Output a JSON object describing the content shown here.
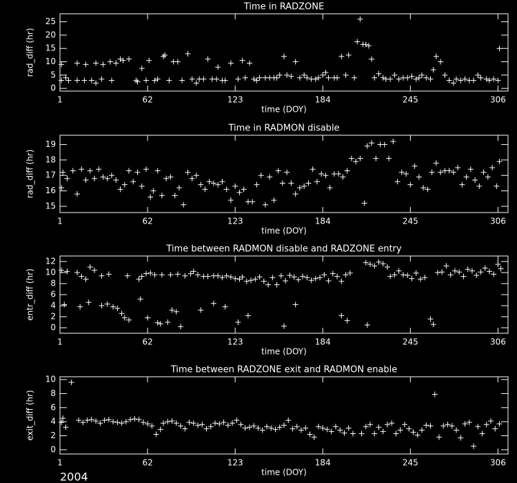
{
  "chart_data": [
    {
      "type": "scatter",
      "title": "Time in RADZONE",
      "x_label": "time (DOY)",
      "y_label": "rad_diff (hr)",
      "color": "#ffffff",
      "marker": "+",
      "xlim": [
        1,
        313
      ],
      "ylim": [
        -1,
        28
      ],
      "xticks": [
        1,
        62,
        123,
        184,
        245,
        306
      ],
      "yticks": [
        0,
        5,
        10,
        15,
        20,
        25
      ],
      "x": [
        2,
        2,
        5,
        7,
        13,
        13,
        18,
        19,
        23,
        26,
        26,
        30,
        31,
        36,
        37,
        40,
        43,
        45,
        49,
        54,
        55,
        58,
        61,
        63,
        67,
        69,
        73,
        74,
        77,
        80,
        83,
        86,
        90,
        93,
        96,
        98,
        101,
        104,
        107,
        110,
        111,
        114,
        116,
        120,
        125,
        128,
        130,
        133,
        136,
        138,
        140,
        144,
        147,
        150,
        152,
        154,
        157,
        159,
        162,
        165,
        168,
        171,
        173,
        176,
        179,
        181,
        184,
        186,
        188,
        192,
        194,
        197,
        200,
        202,
        206,
        208,
        210,
        212,
        214,
        216,
        218,
        220,
        223,
        226,
        228,
        231,
        234,
        237,
        240,
        243,
        246,
        249,
        251,
        253,
        256,
        259,
        261,
        263,
        266,
        269,
        272,
        275,
        277,
        280,
        283,
        286,
        289,
        292,
        294,
        298,
        300,
        303,
        306,
        307
      ],
      "values": [
        3,
        9,
        4,
        3,
        9.5,
        3,
        3,
        9,
        3,
        2,
        9.5,
        3.5,
        9,
        10,
        3,
        9.5,
        11,
        10.5,
        11,
        3,
        2.5,
        7.5,
        3,
        10.5,
        3,
        3.5,
        12,
        12.5,
        3,
        10,
        10,
        3,
        13,
        3.5,
        2,
        3.5,
        3.5,
        11,
        3.5,
        3.5,
        8,
        3,
        3,
        9.5,
        3.5,
        10.5,
        4,
        9.5,
        3.5,
        3,
        4,
        4,
        4,
        4,
        4,
        5,
        12,
        5,
        4.5,
        10,
        4,
        5,
        4,
        3.5,
        3.5,
        4,
        5,
        6,
        4,
        4,
        4,
        12,
        5,
        12.5,
        4,
        17.5,
        26,
        16.5,
        16.5,
        16,
        11,
        4,
        5.5,
        4,
        3.5,
        3.5,
        5,
        3.5,
        4,
        4,
        4.5,
        3.5,
        4,
        5,
        4,
        3.5,
        7,
        12,
        10,
        5,
        3,
        2,
        3.5,
        3,
        3.5,
        3,
        3,
        5,
        4,
        3.5,
        3,
        3.5,
        3,
        15
      ]
    },
    {
      "type": "scatter",
      "title": "Time in RADMON disable",
      "x_label": "time (DOY)",
      "y_label": "rad_diff (hr)",
      "color": "#ffffff",
      "marker": "+",
      "xlim": [
        1,
        313
      ],
      "ylim": [
        14.6,
        19.6
      ],
      "xticks": [
        1,
        62,
        123,
        184,
        245,
        306
      ],
      "yticks": [
        15,
        16,
        17,
        18,
        19
      ],
      "x": [
        2,
        3,
        6,
        10,
        13,
        16,
        19,
        22,
        25,
        28,
        31,
        34,
        37,
        40,
        43,
        46,
        49,
        52,
        55,
        58,
        61,
        64,
        66,
        69,
        72,
        75,
        78,
        81,
        84,
        87,
        90,
        93,
        96,
        99,
        102,
        105,
        108,
        111,
        114,
        117,
        120,
        123,
        126,
        129,
        132,
        135,
        138,
        141,
        144,
        147,
        150,
        153,
        156,
        159,
        162,
        165,
        168,
        171,
        174,
        177,
        180,
        183,
        186,
        189,
        192,
        195,
        198,
        201,
        204,
        207,
        210,
        213,
        215,
        218,
        221,
        224,
        227,
        230,
        233,
        236,
        239,
        242,
        245,
        248,
        251,
        254,
        257,
        260,
        263,
        266,
        269,
        272,
        275,
        278,
        281,
        284,
        287,
        290,
        293,
        296,
        299,
        302,
        305,
        307
      ],
      "values": [
        16.2,
        17.2,
        16.8,
        17.3,
        15.8,
        17.4,
        16.7,
        17.3,
        16.8,
        17.4,
        16.9,
        16.8,
        17,
        16.7,
        16.1,
        16.4,
        17.3,
        16.6,
        17.2,
        16.3,
        17.4,
        15.6,
        16,
        17.3,
        15.7,
        16.8,
        16.9,
        15.7,
        16.2,
        15.1,
        17.2,
        16.8,
        17,
        16.4,
        16.1,
        16.6,
        16.5,
        16.4,
        16.6,
        16.1,
        15.4,
        16.3,
        15.9,
        16.1,
        15.3,
        15.3,
        16.4,
        17,
        15.1,
        16.9,
        15.4,
        17.3,
        16.5,
        17.2,
        16.5,
        15.8,
        16.2,
        16.3,
        16.5,
        17.4,
        16.6,
        17.1,
        17,
        16.2,
        17.1,
        17.1,
        16.9,
        17.3,
        18.1,
        17.9,
        18.1,
        15.2,
        18.9,
        19.1,
        18.1,
        19,
        19,
        18.1,
        19.2,
        16.6,
        17.2,
        17.1,
        16.4,
        17.6,
        16.9,
        16.2,
        16.1,
        17.2,
        17.8,
        17.2,
        17.3,
        17.3,
        17.2,
        17.5,
        16.4,
        16.9,
        17.4,
        16.7,
        16.3,
        17.2,
        16.9,
        17.5,
        16.3,
        17.9
      ]
    },
    {
      "type": "scatter",
      "title": "Time between RADMON disable and RADZONE entry",
      "x_label": "time (DOY)",
      "y_label": "entr_diff (hr)",
      "color": "#ffffff",
      "marker": "+",
      "xlim": [
        1,
        313
      ],
      "ylim": [
        -1,
        13
      ],
      "xticks": [
        1,
        62,
        123,
        184,
        245,
        306
      ],
      "yticks": [
        0,
        2,
        4,
        6,
        8,
        10,
        12
      ],
      "x": [
        2,
        6,
        13,
        16,
        19,
        22,
        25,
        30,
        35,
        48,
        56,
        58,
        61,
        64,
        67,
        72,
        78,
        83,
        88,
        92,
        94,
        97,
        101,
        104,
        108,
        111,
        114,
        117,
        120,
        123,
        126,
        128,
        131,
        134,
        137,
        140,
        143,
        146,
        149,
        152,
        155,
        158,
        161,
        164,
        167,
        170,
        173,
        176,
        179,
        182,
        185,
        188,
        191,
        194,
        197,
        200,
        203,
        214,
        217,
        220,
        223,
        226,
        229,
        231,
        234,
        237,
        240,
        243,
        246,
        249,
        252,
        255,
        264,
        267,
        270,
        273,
        276,
        279,
        282,
        285,
        288,
        291,
        294,
        297,
        300,
        303,
        306,
        308,
        4,
        15,
        21,
        30,
        34,
        38,
        41,
        44,
        46,
        49,
        57,
        62,
        69,
        71,
        76,
        79,
        82,
        85,
        99,
        108,
        116,
        125,
        132,
        157,
        165,
        197,
        201,
        215,
        259,
        261
      ],
      "values": [
        10.4,
        10.2,
        10,
        9.3,
        8.8,
        11,
        10.4,
        9.4,
        9.7,
        9.4,
        8.8,
        9.3,
        9.8,
        9.9,
        9.6,
        9.6,
        9.6,
        9.7,
        9.4,
        9.8,
        10.2,
        9.6,
        9.3,
        9.3,
        9.4,
        9.4,
        9.1,
        9.4,
        9.2,
        8.9,
        8.8,
        9.2,
        8.4,
        8.6,
        8.8,
        9.2,
        8.4,
        7.8,
        9.1,
        7.8,
        9.4,
        8.5,
        9.5,
        9.2,
        8.7,
        9.3,
        9.1,
        8.6,
        8.9,
        9.1,
        9.6,
        8.5,
        9.8,
        9.3,
        8.4,
        9.6,
        9.9,
        11.8,
        11.5,
        11.2,
        11.9,
        11.6,
        11,
        9.3,
        9.6,
        10.3,
        9.6,
        9.5,
        8.9,
        9.9,
        8.8,
        9.1,
        10,
        10.1,
        11.2,
        9.6,
        10.3,
        10.1,
        9.3,
        10.6,
        10.3,
        9.5,
        10.1,
        10.8,
        10.2,
        9.7,
        11.5,
        10.7,
        4.2,
        3.8,
        4.6,
        4,
        4.3,
        3.8,
        3.5,
        2.6,
        1.8,
        1.4,
        5.2,
        1.8,
        0.9,
        0.7,
        1,
        3.2,
        2.9,
        0.2,
        3.2,
        4.4,
        3.8,
        1,
        2.2,
        0.3,
        4.2,
        2.2,
        1.3,
        0.5,
        1.6,
        0.6
      ]
    },
    {
      "type": "scatter",
      "title": "Time between RADZONE exit and RADMON enable",
      "x_label": "time (DOY)",
      "y_label": "exit_diff (hr)",
      "color": "#ffffff",
      "marker": "+",
      "xlim": [
        1,
        313
      ],
      "ylim": [
        -0.6,
        10.4
      ],
      "xticks": [
        1,
        62,
        123,
        184,
        245,
        306
      ],
      "yticks": [
        0,
        2,
        4,
        6,
        8,
        10
      ],
      "x": [
        2,
        3,
        5,
        9,
        14,
        17,
        20,
        23,
        26,
        29,
        32,
        35,
        38,
        41,
        44,
        47,
        50,
        53,
        56,
        59,
        62,
        65,
        68,
        71,
        73,
        76,
        79,
        82,
        85,
        88,
        91,
        94,
        97,
        100,
        103,
        106,
        109,
        112,
        115,
        118,
        121,
        124,
        127,
        130,
        133,
        136,
        139,
        142,
        145,
        148,
        151,
        154,
        157,
        160,
        163,
        166,
        169,
        172,
        175,
        178,
        181,
        184,
        187,
        190,
        193,
        196,
        199,
        202,
        205,
        211,
        214,
        217,
        220,
        223,
        226,
        229,
        232,
        235,
        238,
        241,
        244,
        247,
        250,
        253,
        256,
        259,
        262,
        265,
        268,
        271,
        274,
        277,
        280,
        283,
        286,
        289,
        292,
        295,
        298,
        301,
        304,
        307
      ],
      "values": [
        3.9,
        4.5,
        3.2,
        9.6,
        4.2,
        3.9,
        4.2,
        4.3,
        4.1,
        3.8,
        4.2,
        4.3,
        4,
        3.9,
        3.8,
        4,
        4.3,
        4.4,
        4.3,
        3.9,
        3.7,
        3.4,
        2.2,
        2.9,
        3.8,
        4,
        4.1,
        3.8,
        3.4,
        3,
        3.9,
        3.8,
        3.5,
        3.6,
        3,
        3.3,
        3.8,
        3.7,
        3.9,
        3.5,
        3.8,
        4.2,
        3.6,
        3.1,
        3.2,
        3.4,
        3.1,
        2.8,
        3.3,
        3.1,
        2.9,
        3.2,
        3.5,
        4.2,
        3,
        3.3,
        2.8,
        3.1,
        2.2,
        1.8,
        3.3,
        3.1,
        2.9,
        2.6,
        3.3,
        2.8,
        2.4,
        3.1,
        2.3,
        2.3,
        3.3,
        3.6,
        2.3,
        3.2,
        2.6,
        3.6,
        3.8,
        2.3,
        2.8,
        3.6,
        3,
        2.5,
        2.1,
        2.8,
        3.5,
        3.4,
        7.9,
        1.8,
        3.4,
        3.6,
        3.4,
        2.8,
        1.7,
        3.7,
        3.9,
        0.5,
        3.3,
        2.3,
        3.6,
        4.1,
        3,
        3.7
      ]
    }
  ],
  "footer": "2004"
}
